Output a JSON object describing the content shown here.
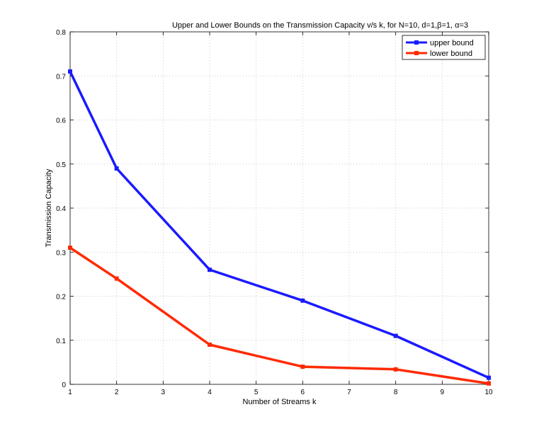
{
  "chart_data": {
    "type": "line",
    "title": "Upper and Lower Bounds on the Transmission Capacity v/s k, for N=10, d=1,β=1, α=3",
    "xlabel": "Number of Streams k",
    "ylabel": "Transmission Capacity",
    "xlim": [
      1,
      10
    ],
    "ylim": [
      0,
      0.8
    ],
    "xticks": [
      "1",
      "2",
      "3",
      "4",
      "5",
      "6",
      "7",
      "8",
      "9",
      "10"
    ],
    "yticks": [
      "0",
      "0.1",
      "0.2",
      "0.3",
      "0.4",
      "0.5",
      "0.6",
      "0.7",
      "0.8"
    ],
    "grid": true,
    "legend_position": "top-right",
    "series": [
      {
        "name": "upper bound",
        "color": "#1a1aff",
        "x": [
          1,
          2,
          4,
          6,
          8,
          10
        ],
        "y": [
          0.71,
          0.49,
          0.26,
          0.19,
          0.11,
          0.015
        ]
      },
      {
        "name": "lower bound",
        "color": "#ff2a00",
        "x": [
          1,
          2,
          4,
          6,
          8,
          10
        ],
        "y": [
          0.31,
          0.24,
          0.09,
          0.04,
          0.034,
          0.002
        ]
      }
    ]
  }
}
